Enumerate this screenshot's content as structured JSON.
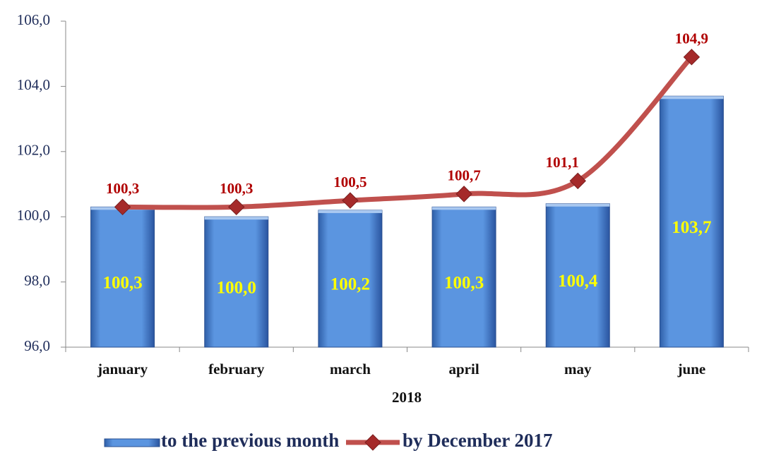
{
  "chart_data": {
    "type": "combo",
    "x_label": "2018",
    "categories": [
      "january",
      "february",
      "march",
      "april",
      "may",
      "june"
    ],
    "series": [
      {
        "name": "to the previous month",
        "type": "bar",
        "color": "#4a86d8",
        "values": [
          100.3,
          100.0,
          100.2,
          100.3,
          100.4,
          103.7
        ],
        "value_labels": [
          "100,3",
          "100,0",
          "100,2",
          "100,3",
          "100,4",
          "103,7"
        ]
      },
      {
        "name": "by December 2017",
        "type": "line",
        "color": "#c0504d",
        "values": [
          100.3,
          100.3,
          100.5,
          100.7,
          101.1,
          104.9
        ],
        "value_labels": [
          "100,3",
          "100,3",
          "100,5",
          "100,7",
          "101,1",
          "104,9"
        ]
      }
    ],
    "ylim": [
      96,
      106
    ],
    "yticks": [
      {
        "value": 96,
        "label": "96,0"
      },
      {
        "value": 98,
        "label": "98,0"
      },
      {
        "value": 100,
        "label": "100,0"
      },
      {
        "value": 102,
        "label": "102,0"
      },
      {
        "value": 104,
        "label": "104,0"
      },
      {
        "value": 106,
        "label": "106,0"
      }
    ]
  }
}
